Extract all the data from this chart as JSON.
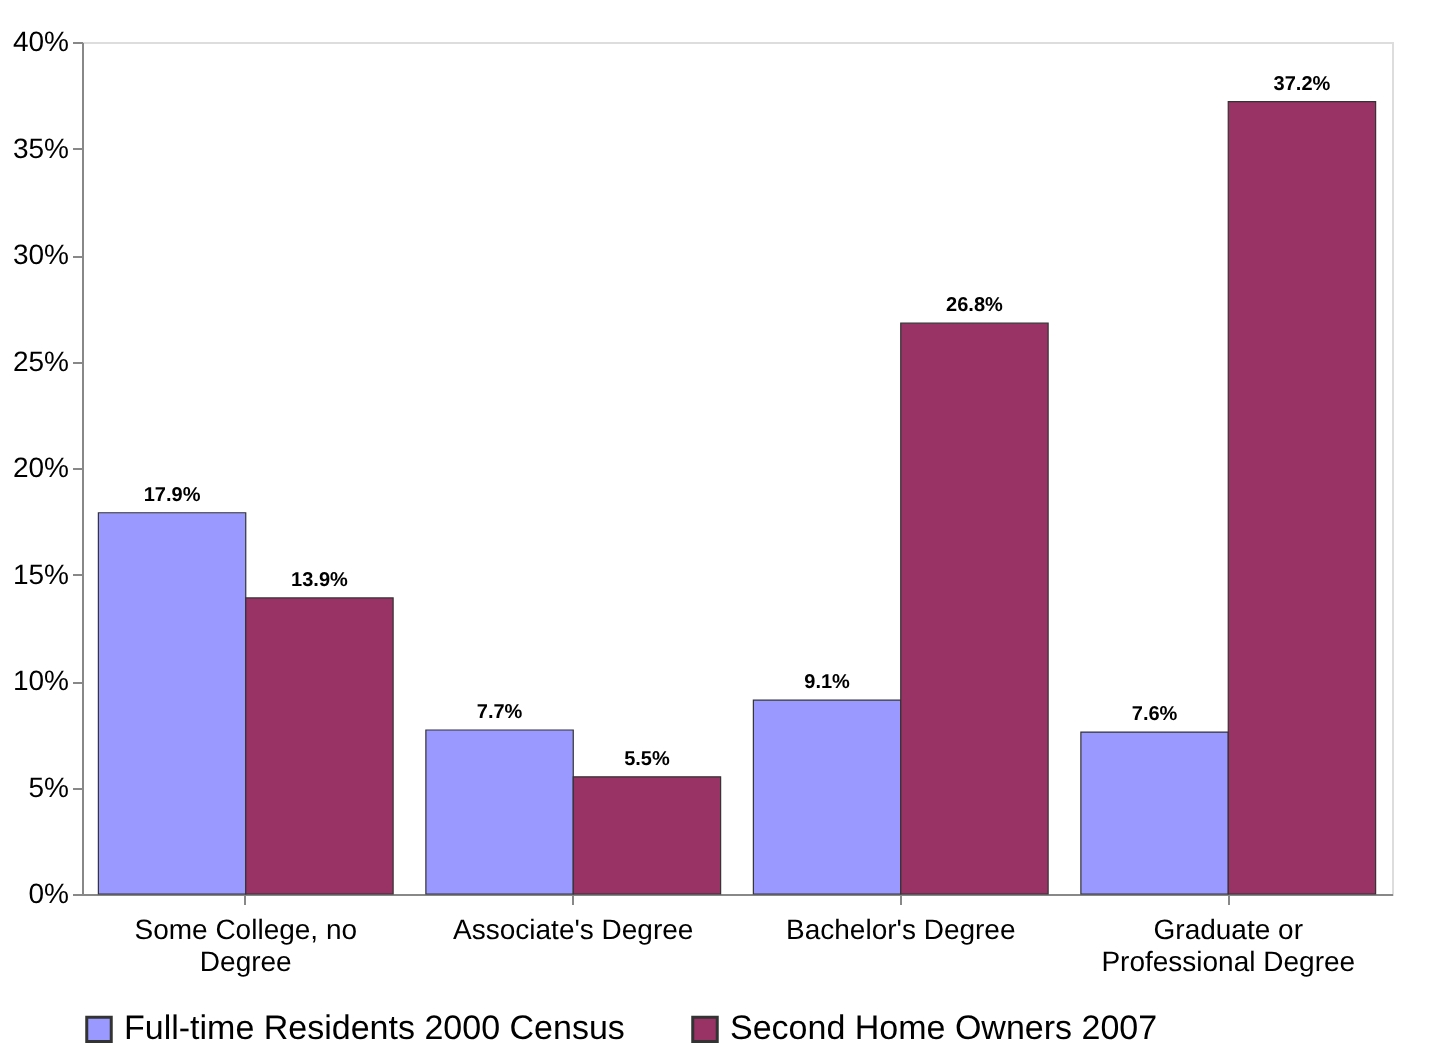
{
  "chart_data": {
    "type": "bar",
    "categories": [
      "Some College, no Degree",
      "Associate's Degree",
      "Bachelor's Degree",
      "Graduate or Professional Degree"
    ],
    "series": [
      {
        "name": "Full-time Residents 2000 Census",
        "color": "#9999ff",
        "values": [
          17.9,
          7.7,
          9.1,
          7.6
        ],
        "value_labels": [
          "17.9%",
          "7.7%",
          "9.1%",
          "7.6%"
        ]
      },
      {
        "name": "Second Home Owners 2007",
        "color": "#993366",
        "values": [
          13.9,
          5.5,
          26.8,
          37.2
        ],
        "value_labels": [
          "13.9%",
          "5.5%",
          "26.8%",
          "37.2%"
        ]
      }
    ],
    "ylim": [
      0,
      40
    ],
    "yticks": [
      {
        "value": 0,
        "label": "0%"
      },
      {
        "value": 5,
        "label": "5%"
      },
      {
        "value": 10,
        "label": "10%"
      },
      {
        "value": 15,
        "label": "15%"
      },
      {
        "value": 20,
        "label": "20%"
      },
      {
        "value": 25,
        "label": "25%"
      },
      {
        "value": 30,
        "label": "30%"
      },
      {
        "value": 35,
        "label": "35%"
      },
      {
        "value": 40,
        "label": "40%"
      }
    ],
    "grid": false,
    "legend": "bottom"
  }
}
